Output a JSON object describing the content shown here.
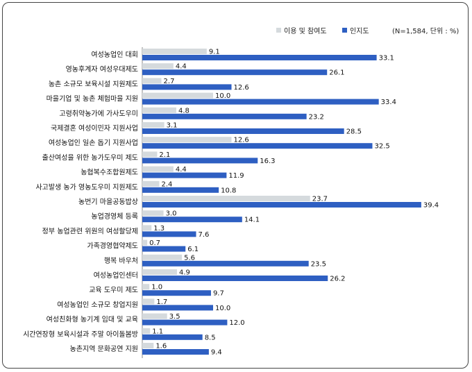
{
  "chart_data": {
    "type": "bar",
    "orientation": "horizontal",
    "note": "(N=1,584, 단위 : %)",
    "categories": [
      "여성농업인 대회",
      "영농후계자 여성우대제도",
      "농촌 소규모 보육시설 지원제도",
      "마을기업 및 농촌 체험마을 지원",
      "고령취약농가에 가사도우미",
      "국제결혼 여성이민자 지원사업",
      "여성농업인 일손 돕기 지원사업",
      "출산여성을 위한 농가도우미 제도",
      "농협복수조합원제도",
      "사고발생 농가 영농도우미 지원제도",
      "농번기 마을공동밥상",
      "농업경영체 등록",
      "정부 농업관련 위원의 여성할당제",
      "가족경영협약제도",
      "행복 바우처",
      "여성농업인센터",
      "교육 도우미 제도",
      "여성농업인 소규모 창업지원",
      "여성친화형 농기계 임대 및 교육",
      "시간연장형 보육시설과 주말 아이돌봄방",
      "농촌지역 문화공연 지원"
    ],
    "series": [
      {
        "name": "이용 및 참여도",
        "color": "#d5dadd",
        "values": [
          9.1,
          4.4,
          2.7,
          10.0,
          4.8,
          3.1,
          12.6,
          2.1,
          4.4,
          2.4,
          23.7,
          3.0,
          1.3,
          0.7,
          5.6,
          4.9,
          1.0,
          1.7,
          3.5,
          1.1,
          1.6
        ]
      },
      {
        "name": "인지도",
        "color": "#2e5fc2",
        "values": [
          33.1,
          26.1,
          12.6,
          33.4,
          23.2,
          28.5,
          32.5,
          16.3,
          11.9,
          10.8,
          39.4,
          14.1,
          7.6,
          6.1,
          23.5,
          26.2,
          9.7,
          10.0,
          12.0,
          8.5,
          9.4
        ]
      }
    ],
    "legend_position": "top-right",
    "grid": false
  }
}
